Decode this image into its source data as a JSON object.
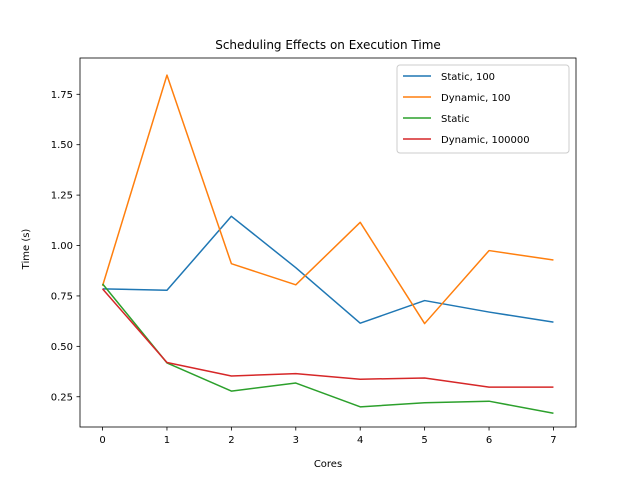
{
  "chart_data": {
    "type": "line",
    "title": "Scheduling Effects on Execution Time",
    "xlabel": "Cores",
    "ylabel": "Time (s)",
    "x": [
      0,
      1,
      2,
      3,
      4,
      5,
      6,
      7
    ],
    "xlim": [
      -0.35,
      7.35
    ],
    "ylim": [
      0.1,
      1.93
    ],
    "xticks": [
      0,
      1,
      2,
      3,
      4,
      5,
      6,
      7
    ],
    "yticks": [
      0.25,
      0.5,
      0.75,
      1.0,
      1.25,
      1.5,
      1.75
    ],
    "ytick_labels": [
      "0.25",
      "0.50",
      "0.75",
      "1.00",
      "1.25",
      "1.50",
      "1.75"
    ],
    "grid": false,
    "legend_position": "top-right",
    "series": [
      {
        "name": "Static, 100",
        "color": "#1f77b4",
        "values": [
          0.785,
          0.778,
          1.145,
          0.89,
          0.615,
          0.727,
          0.67,
          0.62
        ]
      },
      {
        "name": "Dynamic, 100",
        "color": "#ff7f0e",
        "values": [
          0.8,
          1.845,
          0.91,
          0.805,
          1.115,
          0.613,
          0.975,
          0.928
        ]
      },
      {
        "name": "Static",
        "color": "#2ca02c",
        "values": [
          0.81,
          0.418,
          0.278,
          0.318,
          0.2,
          0.22,
          0.228,
          0.168
        ]
      },
      {
        "name": "Dynamic, 100000",
        "color": "#d62728",
        "values": [
          0.785,
          0.42,
          0.353,
          0.365,
          0.337,
          0.343,
          0.298,
          0.298
        ]
      }
    ]
  }
}
